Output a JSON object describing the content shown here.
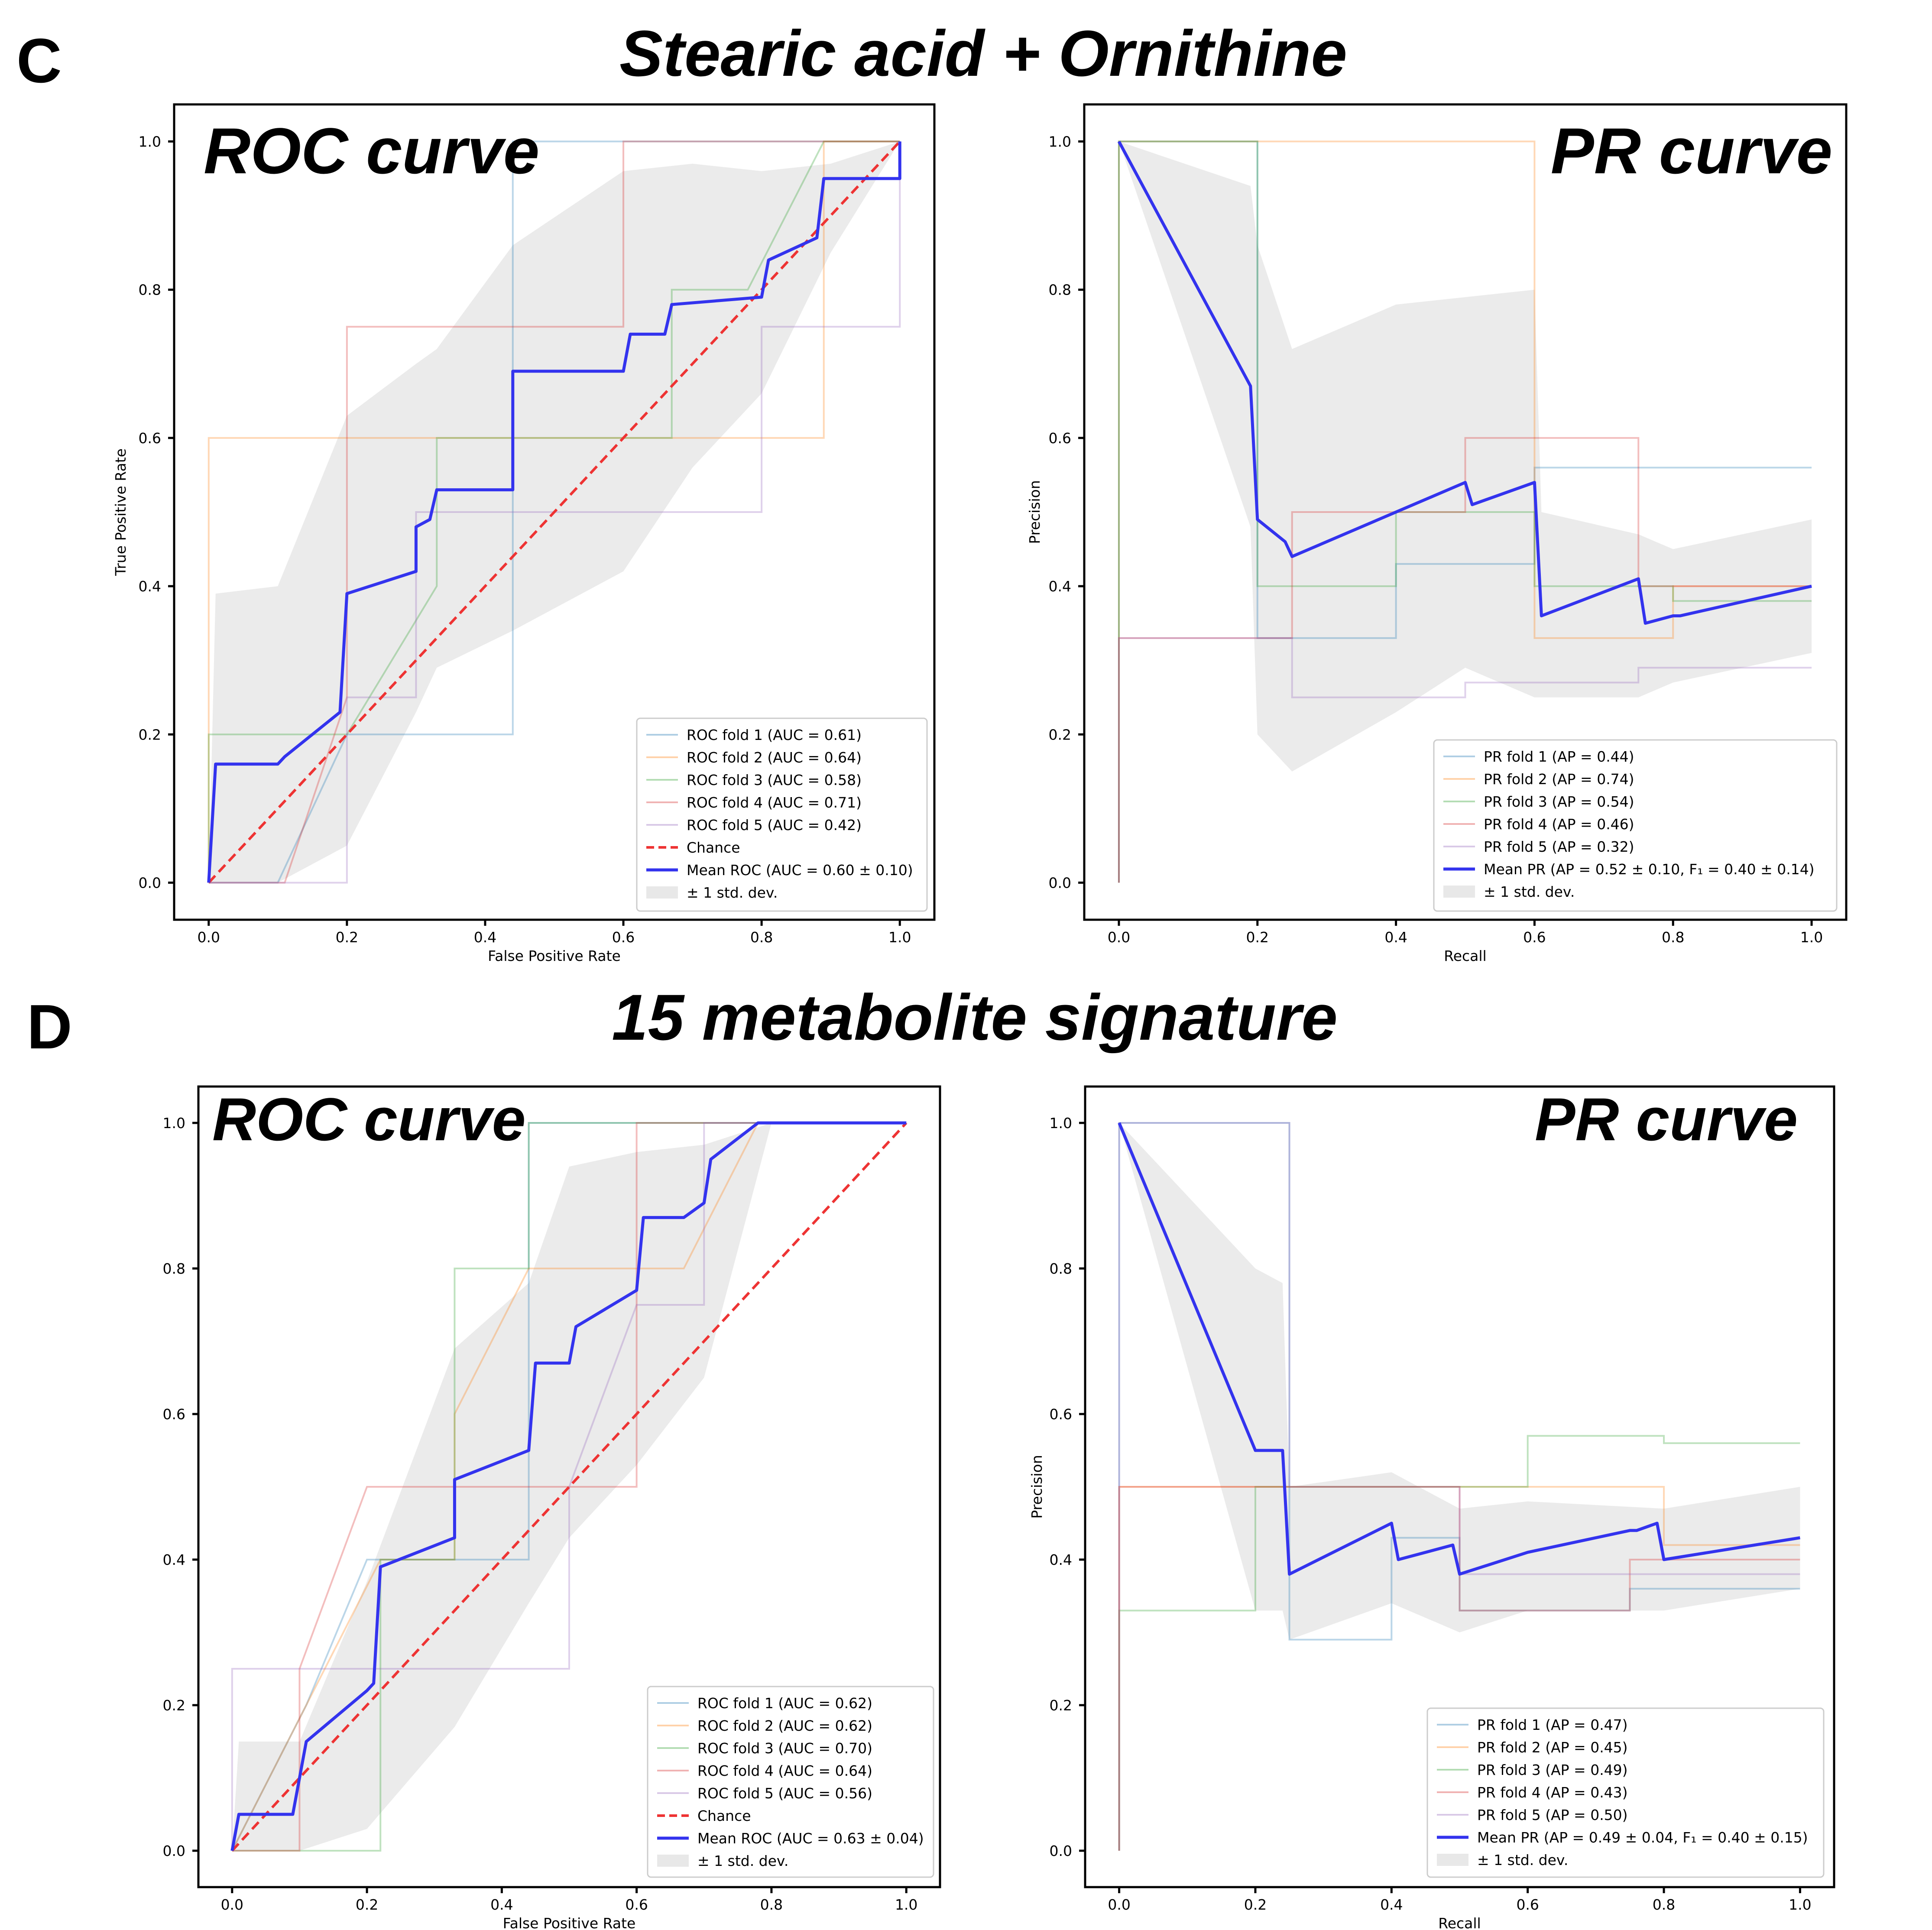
{
  "figure": {
    "panels": [
      {
        "letter": "C",
        "title": "Stearic acid + Ornithine"
      },
      {
        "letter": "D",
        "title": "15 metabolite signature"
      }
    ]
  },
  "colors": {
    "fold1": "#1f77b4",
    "fold2": "#ff7f0e",
    "fold3": "#2ca02c",
    "fold4": "#d62728",
    "fold5": "#9467bd",
    "mean": "#3333ee",
    "chance": "#ee3333",
    "band": "#e8e8e8"
  },
  "chart_data": [
    {
      "type": "line",
      "title": "ROC curve",
      "xlabel": "False Positive Rate",
      "ylabel": "True Positive Rate",
      "xlim": [
        -0.05,
        1.05
      ],
      "ylim": [
        -0.05,
        1.05
      ],
      "xticks": [
        "0.0",
        "0.2",
        "0.4",
        "0.6",
        "0.8",
        "1.0"
      ],
      "yticks": [
        "0.0",
        "0.2",
        "0.4",
        "0.6",
        "0.8",
        "1.0"
      ],
      "series": [
        {
          "name": "ROC fold 1 (AUC = 0.61)",
          "role": "fold",
          "color_key": "fold1",
          "x": [
            0,
            0.1,
            0.2,
            0.2,
            0.44,
            0.44,
            1.0
          ],
          "y": [
            0,
            0,
            0.2,
            0.2,
            0.2,
            1.0,
            1.0
          ]
        },
        {
          "name": "ROC fold 2 (AUC = 0.64)",
          "role": "fold",
          "color_key": "fold2",
          "x": [
            0,
            0,
            0.89,
            0.89,
            1.0
          ],
          "y": [
            0,
            0.6,
            0.6,
            1.0,
            1.0
          ]
        },
        {
          "name": "ROC fold 3 (AUC = 0.58)",
          "role": "fold",
          "color_key": "fold3",
          "x": [
            0,
            0,
            0.2,
            0.2,
            0.33,
            0.33,
            0.67,
            0.67,
            0.78,
            0.89,
            1.0
          ],
          "y": [
            0,
            0.2,
            0.2,
            0.2,
            0.4,
            0.6,
            0.6,
            0.8,
            0.8,
            1.0,
            1.0
          ]
        },
        {
          "name": "ROC fold 4 (AUC = 0.71)",
          "role": "fold",
          "color_key": "fold4",
          "x": [
            0,
            0.11,
            0.2,
            0.2,
            0.6,
            0.6,
            1.0
          ],
          "y": [
            0,
            0,
            0.25,
            0.75,
            0.75,
            1.0,
            1.0
          ]
        },
        {
          "name": "ROC fold 5 (AUC = 0.42)",
          "role": "fold",
          "color_key": "fold5",
          "x": [
            0,
            0.2,
            0.2,
            0.3,
            0.3,
            0.8,
            0.8,
            1.0,
            1.0
          ],
          "y": [
            0,
            0,
            0.25,
            0.25,
            0.5,
            0.5,
            0.75,
            0.75,
            1.0
          ]
        },
        {
          "name": "Chance",
          "role": "chance",
          "color_key": "chance",
          "x": [
            0,
            1
          ],
          "y": [
            0,
            1
          ]
        },
        {
          "name": "Mean ROC (AUC = 0.60 ± 0.10)",
          "role": "mean",
          "color_key": "mean",
          "x": [
            0,
            0.01,
            0.1,
            0.11,
            0.19,
            0.2,
            0.3,
            0.3,
            0.32,
            0.33,
            0.33,
            0.44,
            0.44,
            0.6,
            0.61,
            0.66,
            0.67,
            0.8,
            0.81,
            0.88,
            0.89,
            1.0,
            1.0
          ],
          "y": [
            0,
            0.16,
            0.16,
            0.17,
            0.23,
            0.39,
            0.42,
            0.48,
            0.49,
            0.53,
            0.53,
            0.53,
            0.69,
            0.69,
            0.74,
            0.74,
            0.78,
            0.79,
            0.84,
            0.87,
            0.95,
            0.95,
            1.0
          ]
        },
        {
          "name": "± 1 std. dev.",
          "role": "band",
          "color_key": "band",
          "x": [
            0,
            0.01,
            0.1,
            0.2,
            0.3,
            0.33,
            0.44,
            0.6,
            0.7,
            0.8,
            0.9,
            1.0
          ],
          "lower": [
            0,
            0,
            0,
            0.05,
            0.23,
            0.29,
            0.34,
            0.42,
            0.56,
            0.66,
            0.85,
            1.0
          ],
          "upper": [
            0,
            0.39,
            0.4,
            0.63,
            0.7,
            0.72,
            0.86,
            0.96,
            0.97,
            0.96,
            0.97,
            1.0
          ]
        }
      ]
    },
    {
      "type": "line",
      "title": "PR curve",
      "xlabel": "Recall",
      "ylabel": "Precision",
      "xlim": [
        -0.05,
        1.05
      ],
      "ylim": [
        -0.05,
        1.05
      ],
      "xticks": [
        "0.0",
        "0.2",
        "0.4",
        "0.6",
        "0.8",
        "1.0"
      ],
      "yticks": [
        "0.0",
        "0.2",
        "0.4",
        "0.6",
        "0.8",
        "1.0"
      ],
      "series": [
        {
          "name": "PR fold 1 (AP = 0.44)",
          "role": "fold",
          "color_key": "fold1",
          "x": [
            0,
            0,
            0.2,
            0.2,
            0.4,
            0.4,
            0.6,
            0.6,
            1.0
          ],
          "y": [
            0,
            1.0,
            1.0,
            0.33,
            0.33,
            0.43,
            0.43,
            0.56,
            0.56
          ]
        },
        {
          "name": "PR fold 2 (AP = 0.74)",
          "role": "fold",
          "color_key": "fold2",
          "x": [
            0,
            0,
            0.6,
            0.6,
            0.8,
            0.8,
            1.0
          ],
          "y": [
            0,
            1.0,
            1.0,
            0.33,
            0.33,
            0.4,
            0.4
          ]
        },
        {
          "name": "PR fold 3 (AP = 0.54)",
          "role": "fold",
          "color_key": "fold3",
          "x": [
            0,
            0,
            0.2,
            0.2,
            0.4,
            0.4,
            0.6,
            0.6,
            0.8,
            0.8,
            1.0
          ],
          "y": [
            0,
            1.0,
            1.0,
            0.4,
            0.4,
            0.5,
            0.5,
            0.4,
            0.4,
            0.38,
            0.38
          ]
        },
        {
          "name": "PR fold 4 (AP = 0.46)",
          "role": "fold",
          "color_key": "fold4",
          "x": [
            0,
            0,
            0.25,
            0.25,
            0.5,
            0.5,
            0.75,
            0.75,
            1.0
          ],
          "y": [
            0,
            0.33,
            0.33,
            0.5,
            0.5,
            0.6,
            0.6,
            0.4,
            0.4
          ]
        },
        {
          "name": "PR fold 5 (AP = 0.32)",
          "role": "fold",
          "color_key": "fold5",
          "x": [
            0,
            0,
            0.25,
            0.25,
            0.5,
            0.5,
            0.75,
            0.75,
            1.0
          ],
          "y": [
            0,
            0.33,
            0.33,
            0.25,
            0.25,
            0.27,
            0.27,
            0.29,
            0.29
          ]
        },
        {
          "name": "Mean PR (AP = 0.52 ± 0.10, F₁ = 0.40 ± 0.14)",
          "role": "mean",
          "color_key": "mean",
          "x": [
            0,
            0.19,
            0.2,
            0.24,
            0.25,
            0.5,
            0.51,
            0.6,
            0.61,
            0.75,
            0.76,
            0.8,
            0.81,
            1.0
          ],
          "y": [
            1.0,
            0.67,
            0.49,
            0.46,
            0.44,
            0.54,
            0.51,
            0.54,
            0.36,
            0.41,
            0.35,
            0.36,
            0.36,
            0.4
          ]
        },
        {
          "name": "± 1 std. dev.",
          "role": "band",
          "color_key": "band",
          "x": [
            0,
            0.19,
            0.2,
            0.25,
            0.4,
            0.5,
            0.6,
            0.61,
            0.75,
            0.8,
            1.0
          ],
          "lower": [
            1.0,
            0.48,
            0.2,
            0.15,
            0.23,
            0.29,
            0.25,
            0.25,
            0.25,
            0.27,
            0.31
          ],
          "upper": [
            1.0,
            0.94,
            0.86,
            0.72,
            0.78,
            0.79,
            0.8,
            0.5,
            0.47,
            0.45,
            0.49
          ]
        }
      ]
    },
    {
      "type": "line",
      "title": "ROC curve",
      "xlabel": "False Positive Rate",
      "ylabel": "",
      "xlim": [
        -0.05,
        1.05
      ],
      "ylim": [
        -0.05,
        1.05
      ],
      "xticks": [
        "0.0",
        "0.2",
        "0.4",
        "0.6",
        "0.8",
        "1.0"
      ],
      "yticks": [
        "0.0",
        "0.2",
        "0.4",
        "0.6",
        "0.8",
        "1.0"
      ],
      "series": [
        {
          "name": "ROC fold 1 (AUC = 0.62)",
          "role": "fold",
          "color_key": "fold1",
          "x": [
            0,
            0.11,
            0.2,
            0.22,
            0.44,
            0.44,
            0.6,
            0.6,
            1.0
          ],
          "y": [
            0,
            0.2,
            0.4,
            0.4,
            0.4,
            1.0,
            1.0,
            1.0,
            1.0
          ]
        },
        {
          "name": "ROC fold 2 (AUC = 0.62)",
          "role": "fold",
          "color_key": "fold2",
          "x": [
            0,
            0.22,
            0.33,
            0.33,
            0.44,
            0.67,
            0.78,
            1.0
          ],
          "y": [
            0,
            0.4,
            0.4,
            0.6,
            0.8,
            0.8,
            1.0,
            1.0
          ]
        },
        {
          "name": "ROC fold 3 (AUC = 0.70)",
          "role": "fold",
          "color_key": "fold3",
          "x": [
            0,
            0.22,
            0.22,
            0.33,
            0.33,
            0.44,
            0.44,
            0.78,
            1.0
          ],
          "y": [
            0,
            0,
            0.4,
            0.4,
            0.8,
            0.8,
            1.0,
            1.0,
            1.0
          ]
        },
        {
          "name": "ROC fold 4 (AUC = 0.64)",
          "role": "fold",
          "color_key": "fold4",
          "x": [
            0,
            0.1,
            0.1,
            0.2,
            0.6,
            0.6,
            1.0
          ],
          "y": [
            0,
            0,
            0.25,
            0.5,
            0.5,
            1.0,
            1.0
          ]
        },
        {
          "name": "ROC fold 5 (AUC = 0.56)",
          "role": "fold",
          "color_key": "fold5",
          "x": [
            0,
            0,
            0.5,
            0.5,
            0.6,
            0.7,
            0.7,
            1.0
          ],
          "y": [
            0,
            0.25,
            0.25,
            0.5,
            0.75,
            0.75,
            1.0,
            1.0
          ]
        },
        {
          "name": "Chance",
          "role": "chance",
          "color_key": "chance",
          "x": [
            0,
            1
          ],
          "y": [
            0,
            1
          ]
        },
        {
          "name": "Mean ROC (AUC = 0.63 ± 0.04)",
          "role": "mean",
          "color_key": "mean",
          "x": [
            0,
            0.01,
            0.09,
            0.1,
            0.11,
            0.2,
            0.21,
            0.22,
            0.33,
            0.33,
            0.44,
            0.45,
            0.5,
            0.51,
            0.6,
            0.61,
            0.67,
            0.7,
            0.71,
            0.78,
            1.0
          ],
          "y": [
            0,
            0.05,
            0.05,
            0.1,
            0.15,
            0.22,
            0.23,
            0.39,
            0.43,
            0.51,
            0.55,
            0.67,
            0.67,
            0.72,
            0.77,
            0.87,
            0.87,
            0.89,
            0.95,
            1.0,
            1.0
          ]
        },
        {
          "name": "± 1 std. dev.",
          "role": "band",
          "color_key": "band",
          "x": [
            0,
            0.01,
            0.1,
            0.2,
            0.33,
            0.44,
            0.5,
            0.6,
            0.7,
            0.8,
            1.0
          ],
          "lower": [
            0,
            0,
            0,
            0.03,
            0.17,
            0.34,
            0.43,
            0.53,
            0.65,
            1.0,
            1.0
          ],
          "upper": [
            0,
            0.15,
            0.15,
            0.37,
            0.69,
            0.78,
            0.94,
            0.96,
            0.97,
            1.0,
            1.0
          ]
        }
      ]
    },
    {
      "type": "line",
      "title": "PR curve",
      "xlabel": "Recall",
      "ylabel": "Precision",
      "xlim": [
        -0.05,
        1.05
      ],
      "ylim": [
        -0.05,
        1.05
      ],
      "xticks": [
        "0.0",
        "0.2",
        "0.4",
        "0.6",
        "0.8",
        "1.0"
      ],
      "yticks": [
        "0.0",
        "0.2",
        "0.4",
        "0.6",
        "0.8",
        "1.0"
      ],
      "series": [
        {
          "name": "PR fold 1 (AP = 0.47)",
          "role": "fold",
          "color_key": "fold1",
          "x": [
            0,
            0,
            0.25,
            0.25,
            0.4,
            0.4,
            0.5,
            0.5,
            0.75,
            0.75,
            1.0
          ],
          "y": [
            0,
            1.0,
            1.0,
            0.29,
            0.29,
            0.43,
            0.43,
            0.33,
            0.33,
            0.36,
            0.36
          ]
        },
        {
          "name": "PR fold 2 (AP = 0.45)",
          "role": "fold",
          "color_key": "fold2",
          "x": [
            0,
            0,
            0.2,
            0.2,
            0.8,
            0.8,
            1.0
          ],
          "y": [
            0,
            0.5,
            0.5,
            0.5,
            0.5,
            0.42,
            0.42
          ]
        },
        {
          "name": "PR fold 3 (AP = 0.49)",
          "role": "fold",
          "color_key": "fold3",
          "x": [
            0,
            0,
            0.2,
            0.2,
            0.6,
            0.6,
            0.8,
            0.8,
            1.0
          ],
          "y": [
            0,
            0.33,
            0.33,
            0.5,
            0.5,
            0.57,
            0.57,
            0.56,
            0.56
          ]
        },
        {
          "name": "PR fold 4 (AP = 0.43)",
          "role": "fold",
          "color_key": "fold4",
          "x": [
            0,
            0,
            0.5,
            0.5,
            0.75,
            0.75,
            1.0
          ],
          "y": [
            0,
            0.5,
            0.5,
            0.33,
            0.33,
            0.4,
            0.4
          ]
        },
        {
          "name": "PR fold 5 (AP = 0.50)",
          "role": "fold",
          "color_key": "fold5",
          "x": [
            0,
            0,
            0.25,
            0.25,
            0.5,
            0.5,
            1.0
          ],
          "y": [
            0,
            1.0,
            1.0,
            0.5,
            0.5,
            0.38,
            0.38
          ]
        },
        {
          "name": "Mean PR (AP = 0.49 ± 0.04, F₁ = 0.40 ± 0.15)",
          "role": "mean",
          "color_key": "mean",
          "x": [
            0,
            0.2,
            0.24,
            0.25,
            0.4,
            0.41,
            0.49,
            0.5,
            0.6,
            0.75,
            0.76,
            0.79,
            0.8,
            1.0
          ],
          "y": [
            1.0,
            0.55,
            0.55,
            0.38,
            0.45,
            0.4,
            0.42,
            0.38,
            0.41,
            0.44,
            0.44,
            0.45,
            0.4,
            0.43
          ]
        },
        {
          "name": "± 1 std. dev.",
          "role": "band",
          "color_key": "band",
          "x": [
            0,
            0.2,
            0.24,
            0.25,
            0.4,
            0.5,
            0.6,
            0.8,
            1.0
          ],
          "lower": [
            1.0,
            0.33,
            0.33,
            0.29,
            0.34,
            0.3,
            0.33,
            0.33,
            0.36
          ],
          "upper": [
            1.0,
            0.8,
            0.78,
            0.5,
            0.52,
            0.47,
            0.48,
            0.47,
            0.5
          ]
        }
      ]
    }
  ]
}
